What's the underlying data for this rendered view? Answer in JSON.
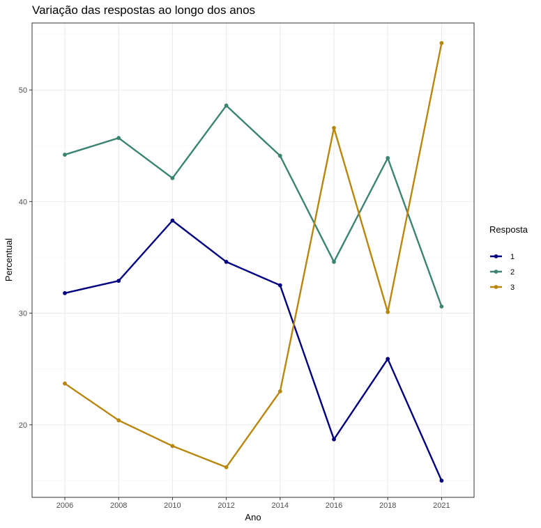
{
  "chart_data": {
    "type": "line",
    "title": "Variação das respostas ao longo dos anos",
    "xlabel": "Ano",
    "ylabel": "Percentual",
    "x": [
      "2006",
      "2008",
      "2010",
      "2012",
      "2014",
      "2016",
      "2018",
      "2021"
    ],
    "yticks": [
      20,
      30,
      40,
      50
    ],
    "ylim": [
      13.5,
      56.0
    ],
    "grid": true,
    "legend": {
      "title": "Resposta",
      "placement": "right"
    },
    "series": [
      {
        "name": "1",
        "color": "#000080",
        "values": [
          31.8,
          32.9,
          38.3,
          34.6,
          32.5,
          18.7,
          25.9,
          15.0
        ]
      },
      {
        "name": "2",
        "color": "#3B8472",
        "values": [
          44.2,
          45.7,
          42.1,
          48.6,
          44.1,
          34.6,
          43.9,
          30.6
        ]
      },
      {
        "name": "3",
        "color": "#B8860B",
        "values": [
          23.7,
          20.4,
          18.1,
          16.2,
          23.0,
          46.6,
          30.1,
          54.2
        ]
      }
    ]
  }
}
